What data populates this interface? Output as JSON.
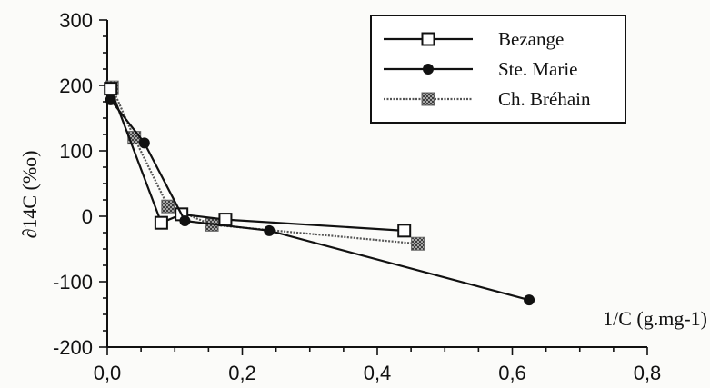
{
  "chart_data": {
    "type": "line",
    "title": "",
    "xlabel": "1/C (g.mg-1)",
    "ylabel": "∂14C (%o)",
    "xlim": [
      0,
      0.8
    ],
    "ylim": [
      -200,
      300
    ],
    "x_ticks": [
      "0,0",
      "0,2",
      "0,4",
      "0,6",
      "0,8"
    ],
    "y_ticks": [
      "300",
      "200",
      "100",
      "0",
      "-100",
      "-200"
    ],
    "legend_position": "top-right",
    "grid": false,
    "series": [
      {
        "name": "Bezange",
        "marker": "open-square",
        "line_style": "solid",
        "points": [
          [
            0.005,
            195
          ],
          [
            0.08,
            -10
          ],
          [
            0.11,
            3
          ],
          [
            0.175,
            -5
          ],
          [
            0.44,
            -22
          ]
        ]
      },
      {
        "name": "Ste. Marie",
        "marker": "filled-circle",
        "line_style": "solid",
        "points": [
          [
            0.005,
            178
          ],
          [
            0.055,
            112
          ],
          [
            0.115,
            -7
          ],
          [
            0.24,
            -22
          ],
          [
            0.625,
            -128
          ]
        ]
      },
      {
        "name": "Ch. Bréhain",
        "marker": "hatched-square",
        "line_style": "dotted",
        "points": [
          [
            0.007,
            197
          ],
          [
            0.04,
            120
          ],
          [
            0.09,
            15
          ],
          [
            0.155,
            -13
          ],
          [
            0.46,
            -42
          ]
        ]
      }
    ]
  }
}
